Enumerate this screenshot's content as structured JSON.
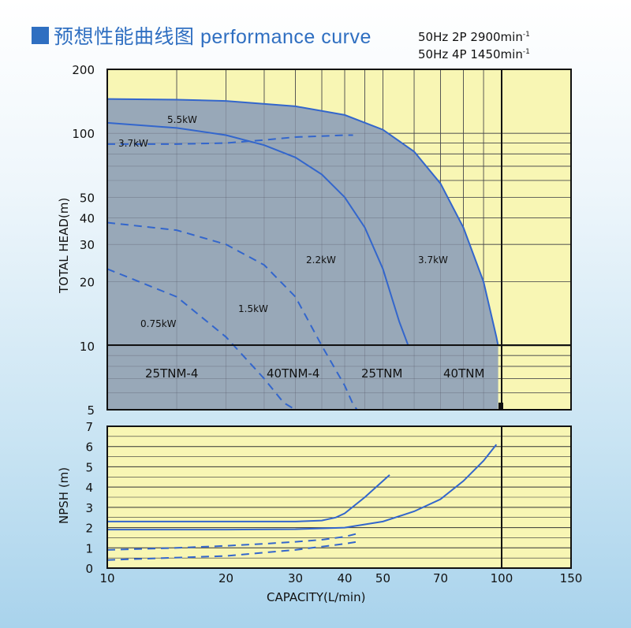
{
  "header": {
    "title": "预想性能曲线图 performance curve",
    "spec_line1": "50Hz 2P 2900min",
    "spec_line2": "50Hz 4P 1450min",
    "spec_sup": "-1"
  },
  "colors": {
    "curve": "#3366cc",
    "region_fill": "#98a8b8",
    "plot_bg": "#f8f6b4",
    "title_accent": "#2f6fc1"
  },
  "chart_data": [
    {
      "type": "line",
      "xlabel": "CAPACITY(L/min)",
      "ylabel": "TOTAL HEAD(m)",
      "xscale": "log",
      "yscale": "log",
      "xlim": [
        10,
        150
      ],
      "ylim": [
        5,
        200
      ],
      "x_ticks": [
        "10",
        "20",
        "30",
        "40",
        "50",
        "70",
        "100",
        "150"
      ],
      "y_ticks": [
        "200",
        "100",
        "50",
        "40",
        "30",
        "20",
        "10",
        "5"
      ],
      "model_labels": [
        "25TNM-4",
        "40TNM-4",
        "25TNM",
        "40TNM"
      ],
      "series": [
        {
          "name": "5.5kW",
          "style": "solid",
          "x": [
            10,
            15,
            20,
            30,
            40,
            50,
            60,
            70,
            80,
            90,
            97,
            98
          ],
          "y": [
            145,
            144,
            142,
            134,
            122,
            104,
            82,
            58,
            36,
            20,
            11,
            10
          ]
        },
        {
          "name": "3.7kW",
          "style": "solid",
          "x": [
            10,
            15,
            20,
            25,
            30,
            35,
            40,
            45,
            50,
            55,
            58
          ],
          "y": [
            112,
            106,
            98,
            88,
            77,
            64,
            50,
            36,
            23,
            13,
            10
          ]
        },
        {
          "name": "3.7kW",
          "style": "dashed",
          "x": [
            10,
            15,
            20,
            25,
            30,
            35,
            40,
            42
          ],
          "y": [
            89,
            89,
            90,
            93,
            96,
            97,
            98,
            98
          ]
        },
        {
          "name": "2.2kW",
          "style": "dashed",
          "x": [
            10,
            15,
            20,
            25,
            30,
            35,
            40,
            42,
            43
          ],
          "y": [
            38,
            35,
            30,
            24,
            17,
            10,
            6.5,
            5.3,
            5
          ]
        },
        {
          "name": "1.5kW",
          "style": "dashed",
          "x": [
            10,
            15,
            20,
            25,
            28,
            30
          ],
          "y": [
            23,
            17,
            11,
            7,
            5.4,
            5
          ]
        },
        {
          "name": "0.75kW",
          "style": "dashed",
          "x": [],
          "y": []
        }
      ],
      "legend_labels": {
        "s55": "5.5kW",
        "s37a": "3.7kW",
        "s37b": "3.7kW",
        "s22": "2.2kW",
        "s15": "1.5kW",
        "s075": "0.75kW"
      }
    },
    {
      "type": "line",
      "xlabel": "CAPACITY(L/min)",
      "ylabel": "NPSH (m)",
      "xscale": "log",
      "xlim": [
        10,
        150
      ],
      "ylim": [
        0,
        7
      ],
      "y_ticks": [
        "7",
        "6",
        "5",
        "4",
        "3",
        "2",
        "1",
        "0"
      ],
      "series": [
        {
          "style": "solid",
          "x": [
            10,
            20,
            30,
            35,
            38,
            40,
            45,
            50,
            52
          ],
          "y": [
            2.3,
            2.3,
            2.3,
            2.35,
            2.5,
            2.7,
            3.5,
            4.3,
            4.6
          ]
        },
        {
          "style": "solid",
          "x": [
            10,
            20,
            30,
            40,
            50,
            60,
            70,
            80,
            90,
            97
          ],
          "y": [
            1.9,
            1.9,
            1.92,
            2.0,
            2.3,
            2.8,
            3.4,
            4.3,
            5.3,
            6.1
          ]
        },
        {
          "style": "dashed",
          "x": [
            10,
            15,
            20,
            25,
            30,
            35,
            40,
            43
          ],
          "y": [
            0.9,
            1.0,
            1.1,
            1.2,
            1.3,
            1.4,
            1.55,
            1.7
          ]
        },
        {
          "style": "dashed",
          "x": [
            10,
            20,
            30,
            40,
            43
          ],
          "y": [
            0.4,
            0.6,
            0.9,
            1.2,
            1.3
          ]
        }
      ]
    }
  ]
}
